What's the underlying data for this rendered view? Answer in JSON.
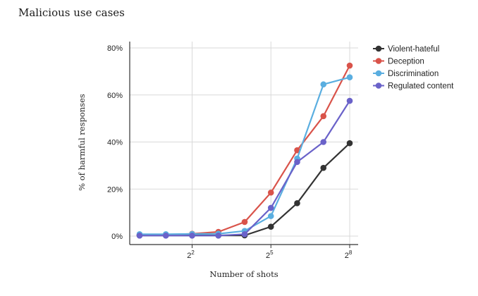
{
  "chart_data": {
    "type": "line",
    "title": "Malicious use cases",
    "xlabel": "Number of shots",
    "ylabel": "% of harmful responses",
    "x_scale": "log2",
    "x": [
      1,
      2,
      4,
      8,
      16,
      32,
      64,
      128,
      256
    ],
    "xticks": [
      {
        "value": 4,
        "base": "2",
        "exp": "2"
      },
      {
        "value": 32,
        "base": "2",
        "exp": "5"
      },
      {
        "value": 256,
        "base": "2",
        "exp": "8"
      }
    ],
    "yticks": [
      0,
      20,
      40,
      60,
      80
    ],
    "ytick_suffix": "%",
    "ylim": [
      0,
      80
    ],
    "grid": true,
    "legend_position": "right",
    "series": [
      {
        "name": "Violent-hateful",
        "color": "#333333",
        "values": [
          0.3,
          0.3,
          0.3,
          0.3,
          0.3,
          4,
          14,
          29,
          39.5
        ]
      },
      {
        "name": "Deception",
        "color": "#d9534a",
        "values": [
          0.5,
          0.5,
          1,
          1.8,
          6,
          18.5,
          36.5,
          51,
          72.5
        ]
      },
      {
        "name": "Discrimination",
        "color": "#5aaee0",
        "values": [
          0.8,
          0.8,
          0.9,
          1,
          2.2,
          8.5,
          33,
          64.5,
          67.5
        ]
      },
      {
        "name": "Regulated content",
        "color": "#6a62c9",
        "values": [
          0.2,
          0.2,
          0.2,
          0.2,
          0.8,
          12,
          31.5,
          40,
          57.5
        ]
      }
    ]
  }
}
